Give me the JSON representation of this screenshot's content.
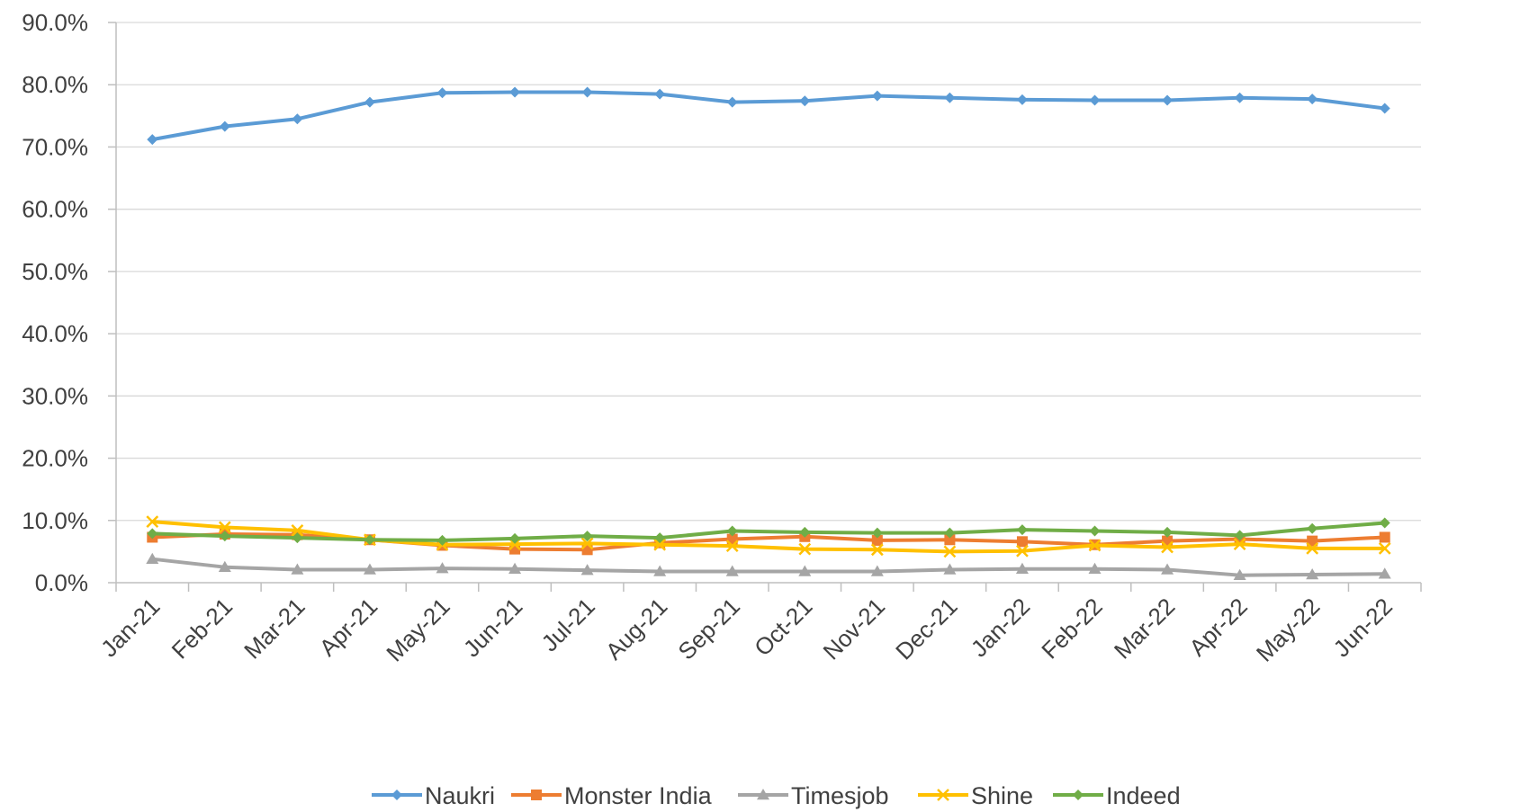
{
  "chart_data": {
    "type": "line",
    "title": "",
    "xlabel": "",
    "ylabel": "",
    "ylim": [
      0,
      90
    ],
    "yticks": [
      "0.0%",
      "10.0%",
      "20.0%",
      "30.0%",
      "40.0%",
      "50.0%",
      "60.0%",
      "70.0%",
      "80.0%",
      "90.0%"
    ],
    "grid": "horizontal",
    "legend_position": "bottom",
    "categories": [
      "Jan-21",
      "Feb-21",
      "Mar-21",
      "Apr-21",
      "May-21",
      "Jun-21",
      "Jul-21",
      "Aug-21",
      "Sep-21",
      "Oct-21",
      "Nov-21",
      "Dec-21",
      "Jan-22",
      "Feb-22",
      "Mar-22",
      "Apr-22",
      "May-22",
      "Jun-22"
    ],
    "series": [
      {
        "name": "Naukri",
        "color": "#5B9BD5",
        "marker": "diamond",
        "values": [
          71.2,
          73.3,
          74.5,
          77.2,
          78.7,
          78.8,
          78.8,
          78.5,
          77.2,
          77.4,
          78.2,
          77.9,
          77.6,
          77.5,
          77.5,
          77.9,
          77.7,
          76.2
        ]
      },
      {
        "name": "Monster India",
        "color": "#ED7D31",
        "marker": "square",
        "values": [
          7.3,
          7.8,
          7.7,
          6.9,
          6.0,
          5.4,
          5.3,
          6.4,
          7.0,
          7.4,
          6.8,
          6.9,
          6.6,
          6.1,
          6.7,
          7.0,
          6.7,
          7.3
        ]
      },
      {
        "name": "Timesjob",
        "color": "#A5A5A5",
        "marker": "triangle",
        "values": [
          3.8,
          2.5,
          2.1,
          2.1,
          2.3,
          2.2,
          2.0,
          1.8,
          1.8,
          1.8,
          1.8,
          2.1,
          2.2,
          2.2,
          2.1,
          1.2,
          1.3,
          1.4
        ]
      },
      {
        "name": "Shine",
        "color": "#FFC000",
        "marker": "x",
        "values": [
          9.8,
          8.9,
          8.4,
          6.9,
          6.1,
          6.2,
          6.3,
          6.1,
          5.9,
          5.4,
          5.3,
          5.0,
          5.1,
          6.0,
          5.7,
          6.2,
          5.5,
          5.5
        ]
      },
      {
        "name": "Indeed",
        "color": "#70AD47",
        "marker": "diamond",
        "values": [
          7.9,
          7.5,
          7.2,
          6.9,
          6.8,
          7.1,
          7.5,
          7.2,
          8.3,
          8.1,
          8.0,
          8.0,
          8.5,
          8.3,
          8.1,
          7.6,
          8.7,
          9.6
        ]
      }
    ]
  }
}
